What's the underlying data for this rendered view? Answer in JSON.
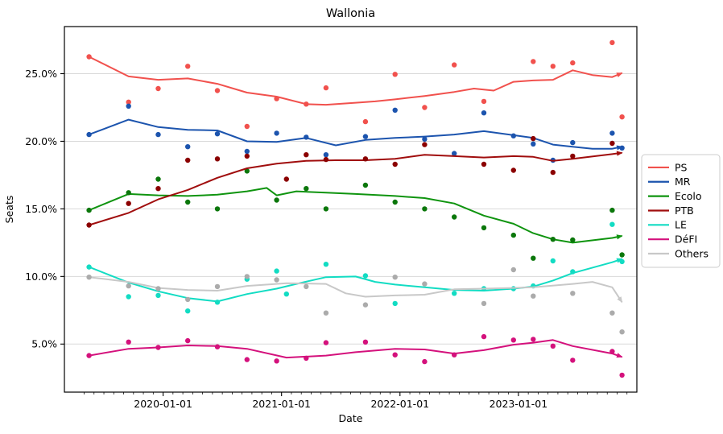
{
  "chart_data": {
    "type": "line",
    "title": "Wallonia",
    "xlabel": "Date",
    "ylabel": "Seats",
    "grid": "horizontal-only",
    "legend_position": "right-outside",
    "x_range": [
      "2019-03-01",
      "2024-01-01"
    ],
    "y_range": [
      1.4,
      28.5
    ],
    "x_ticks": [
      "2020-01-01",
      "2021-01-01",
      "2022-01-01",
      "2023-01-01"
    ],
    "x_tick_labels": [
      "2020-01-01",
      "2021-01-01",
      "2022-01-01",
      "2023-01-01"
    ],
    "y_ticks": [
      5,
      10,
      15,
      20,
      25
    ],
    "y_tick_labels": [
      "5.0%",
      "10.0%",
      "15.0%",
      "20.0%",
      "25.0%"
    ],
    "series": [
      {
        "name": "PS",
        "color": "#f1514d",
        "point_color": "#f1514d",
        "trend": [
          [
            "2019-05",
            26.25
          ],
          [
            "2019-09",
            24.8
          ],
          [
            "2019-12",
            24.55
          ],
          [
            "2020-03",
            24.65
          ],
          [
            "2020-06",
            24.25
          ],
          [
            "2020-09",
            23.6
          ],
          [
            "2020-12",
            23.3
          ],
          [
            "2021-03",
            22.75
          ],
          [
            "2021-05",
            22.7
          ],
          [
            "2021-08",
            22.85
          ],
          [
            "2021-10",
            22.95
          ],
          [
            "2021-12",
            23.1
          ],
          [
            "2022-03",
            23.35
          ],
          [
            "2022-06",
            23.65
          ],
          [
            "2022-08",
            23.9
          ],
          [
            "2022-10",
            23.75
          ],
          [
            "2022-12",
            24.4
          ],
          [
            "2023-02",
            24.5
          ],
          [
            "2023-04",
            24.55
          ],
          [
            "2023-06",
            25.25
          ],
          [
            "2023-08",
            24.9
          ],
          [
            "2023-10",
            24.75
          ],
          [
            "2023-11",
            25.05
          ]
        ],
        "points": [
          [
            "2019-05",
            26.25
          ],
          [
            "2019-09",
            22.9
          ],
          [
            "2019-12",
            23.9
          ],
          [
            "2020-03",
            25.55
          ],
          [
            "2020-06",
            23.75
          ],
          [
            "2020-09",
            21.1
          ],
          [
            "2020-12",
            23.15
          ],
          [
            "2021-03",
            22.75
          ],
          [
            "2021-05",
            23.95
          ],
          [
            "2021-09",
            21.45
          ],
          [
            "2021-12",
            24.95
          ],
          [
            "2022-03",
            22.5
          ],
          [
            "2022-06",
            25.65
          ],
          [
            "2022-09",
            22.95
          ],
          [
            "2023-02",
            25.9
          ],
          [
            "2023-04",
            25.55
          ],
          [
            "2023-06",
            25.8
          ],
          [
            "2023-10",
            27.3
          ],
          [
            "2023-11",
            21.8
          ]
        ]
      },
      {
        "name": "MR",
        "color": "#1c54ae",
        "point_color": "#1c54ae",
        "trend": [
          [
            "2019-05",
            20.5
          ],
          [
            "2019-09",
            21.6
          ],
          [
            "2019-12",
            21.05
          ],
          [
            "2020-03",
            20.85
          ],
          [
            "2020-06",
            20.8
          ],
          [
            "2020-09",
            20.0
          ],
          [
            "2020-12",
            19.95
          ],
          [
            "2021-03",
            20.25
          ],
          [
            "2021-06",
            19.7
          ],
          [
            "2021-09",
            20.1
          ],
          [
            "2021-12",
            20.25
          ],
          [
            "2022-03",
            20.35
          ],
          [
            "2022-06",
            20.5
          ],
          [
            "2022-09",
            20.75
          ],
          [
            "2022-12",
            20.45
          ],
          [
            "2023-02",
            20.25
          ],
          [
            "2023-04",
            19.75
          ],
          [
            "2023-06",
            19.6
          ],
          [
            "2023-08",
            19.45
          ],
          [
            "2023-10",
            19.45
          ],
          [
            "2023-11",
            19.6
          ]
        ],
        "points": [
          [
            "2019-05",
            20.5
          ],
          [
            "2019-09",
            22.6
          ],
          [
            "2019-12",
            20.5
          ],
          [
            "2020-03",
            19.6
          ],
          [
            "2020-06",
            20.55
          ],
          [
            "2020-09",
            19.25
          ],
          [
            "2020-12",
            20.6
          ],
          [
            "2021-03",
            20.3
          ],
          [
            "2021-05",
            19.0
          ],
          [
            "2021-09",
            20.35
          ],
          [
            "2021-12",
            22.3
          ],
          [
            "2022-03",
            20.15
          ],
          [
            "2022-06",
            19.1
          ],
          [
            "2022-09",
            22.1
          ],
          [
            "2022-12",
            20.4
          ],
          [
            "2023-02",
            19.8
          ],
          [
            "2023-04",
            18.6
          ],
          [
            "2023-06",
            19.9
          ],
          [
            "2023-10",
            20.6
          ],
          [
            "2023-11",
            19.5
          ]
        ]
      },
      {
        "name": "Ecolo",
        "color": "#0f940f",
        "point_color": "#0b770b",
        "trend": [
          [
            "2019-05",
            14.9
          ],
          [
            "2019-09",
            16.1
          ],
          [
            "2019-12",
            16.0
          ],
          [
            "2020-03",
            15.95
          ],
          [
            "2020-06",
            16.05
          ],
          [
            "2020-09",
            16.3
          ],
          [
            "2020-11",
            16.55
          ],
          [
            "2020-12",
            16.0
          ],
          [
            "2021-02",
            16.3
          ],
          [
            "2021-05",
            16.2
          ],
          [
            "2021-08",
            16.1
          ],
          [
            "2021-12",
            15.95
          ],
          [
            "2022-03",
            15.8
          ],
          [
            "2022-06",
            15.4
          ],
          [
            "2022-09",
            14.5
          ],
          [
            "2022-12",
            13.9
          ],
          [
            "2023-02",
            13.2
          ],
          [
            "2023-04",
            12.75
          ],
          [
            "2023-06",
            12.5
          ],
          [
            "2023-10",
            12.85
          ],
          [
            "2023-11",
            13.0
          ]
        ],
        "points": [
          [
            "2019-05",
            14.9
          ],
          [
            "2019-09",
            16.2
          ],
          [
            "2019-12",
            17.2
          ],
          [
            "2020-03",
            15.5
          ],
          [
            "2020-06",
            15.0
          ],
          [
            "2020-09",
            17.8
          ],
          [
            "2020-12",
            15.65
          ],
          [
            "2021-03",
            16.5
          ],
          [
            "2021-05",
            15.0
          ],
          [
            "2021-09",
            16.75
          ],
          [
            "2021-12",
            15.5
          ],
          [
            "2022-03",
            15.0
          ],
          [
            "2022-06",
            14.4
          ],
          [
            "2022-09",
            13.6
          ],
          [
            "2022-12",
            13.05
          ],
          [
            "2023-02",
            11.35
          ],
          [
            "2023-04",
            12.75
          ],
          [
            "2023-06",
            12.7
          ],
          [
            "2023-10",
            14.9
          ],
          [
            "2023-11",
            11.6
          ]
        ]
      },
      {
        "name": "PTB",
        "color": "#a00d0d",
        "point_color": "#8b0000",
        "trend": [
          [
            "2019-05",
            13.8
          ],
          [
            "2019-09",
            14.7
          ],
          [
            "2019-12",
            15.7
          ],
          [
            "2020-03",
            16.4
          ],
          [
            "2020-06",
            17.3
          ],
          [
            "2020-09",
            18.0
          ],
          [
            "2020-12",
            18.35
          ],
          [
            "2021-03",
            18.55
          ],
          [
            "2021-06",
            18.6
          ],
          [
            "2021-09",
            18.6
          ],
          [
            "2021-12",
            18.7
          ],
          [
            "2022-03",
            19.0
          ],
          [
            "2022-06",
            18.9
          ],
          [
            "2022-09",
            18.8
          ],
          [
            "2022-12",
            18.9
          ],
          [
            "2023-02",
            18.85
          ],
          [
            "2023-04",
            18.55
          ],
          [
            "2023-06",
            18.7
          ],
          [
            "2023-10",
            19.05
          ],
          [
            "2023-11",
            19.15
          ]
        ],
        "points": [
          [
            "2019-05",
            13.8
          ],
          [
            "2019-09",
            15.4
          ],
          [
            "2019-12",
            16.5
          ],
          [
            "2020-03",
            18.6
          ],
          [
            "2020-06",
            18.7
          ],
          [
            "2020-09",
            18.9
          ],
          [
            "2021-01",
            17.2
          ],
          [
            "2021-03",
            19.0
          ],
          [
            "2021-05",
            18.65
          ],
          [
            "2021-09",
            18.7
          ],
          [
            "2021-12",
            18.3
          ],
          [
            "2022-03",
            19.75
          ],
          [
            "2022-09",
            18.3
          ],
          [
            "2022-12",
            17.85
          ],
          [
            "2023-02",
            20.2
          ],
          [
            "2023-04",
            17.7
          ],
          [
            "2023-06",
            18.9
          ],
          [
            "2023-10",
            19.85
          ]
        ]
      },
      {
        "name": "LE",
        "color": "#12dcc3",
        "point_color": "#12dcc3",
        "trend": [
          [
            "2019-05",
            10.7
          ],
          [
            "2019-09",
            9.55
          ],
          [
            "2019-12",
            8.9
          ],
          [
            "2020-03",
            8.4
          ],
          [
            "2020-06",
            8.15
          ],
          [
            "2020-09",
            8.7
          ],
          [
            "2020-12",
            9.1
          ],
          [
            "2021-02",
            9.45
          ],
          [
            "2021-05",
            9.95
          ],
          [
            "2021-08",
            10.0
          ],
          [
            "2021-10",
            9.6
          ],
          [
            "2021-12",
            9.4
          ],
          [
            "2022-03",
            9.2
          ],
          [
            "2022-06",
            9.0
          ],
          [
            "2022-09",
            8.95
          ],
          [
            "2022-12",
            9.1
          ],
          [
            "2023-02",
            9.25
          ],
          [
            "2023-04",
            9.7
          ],
          [
            "2023-06",
            10.25
          ],
          [
            "2023-10",
            11.05
          ],
          [
            "2023-11",
            11.3
          ]
        ],
        "points": [
          [
            "2019-05",
            10.7
          ],
          [
            "2019-09",
            8.5
          ],
          [
            "2019-12",
            8.6
          ],
          [
            "2020-03",
            7.45
          ],
          [
            "2020-06",
            8.1
          ],
          [
            "2020-09",
            9.8
          ],
          [
            "2020-12",
            10.4
          ],
          [
            "2021-01",
            8.7
          ],
          [
            "2021-05",
            10.9
          ],
          [
            "2021-09",
            10.05
          ],
          [
            "2021-12",
            8.0
          ],
          [
            "2022-06",
            8.75
          ],
          [
            "2022-09",
            9.1
          ],
          [
            "2022-12",
            9.1
          ],
          [
            "2023-02",
            9.3
          ],
          [
            "2023-04",
            11.15
          ],
          [
            "2023-06",
            10.35
          ],
          [
            "2023-10",
            13.85
          ],
          [
            "2023-11",
            11.1
          ]
        ]
      },
      {
        "name": "DéFI",
        "color": "#d4117c",
        "point_color": "#d4117c",
        "trend": [
          [
            "2019-05",
            4.15
          ],
          [
            "2019-09",
            4.65
          ],
          [
            "2019-12",
            4.75
          ],
          [
            "2020-03",
            4.9
          ],
          [
            "2020-06",
            4.85
          ],
          [
            "2020-09",
            4.65
          ],
          [
            "2021-01",
            4.0
          ],
          [
            "2021-05",
            4.15
          ],
          [
            "2021-08",
            4.4
          ],
          [
            "2021-12",
            4.65
          ],
          [
            "2022-03",
            4.6
          ],
          [
            "2022-06",
            4.3
          ],
          [
            "2022-09",
            4.55
          ],
          [
            "2022-12",
            4.95
          ],
          [
            "2023-02",
            5.1
          ],
          [
            "2023-04",
            5.3
          ],
          [
            "2023-06",
            4.85
          ],
          [
            "2023-10",
            4.3
          ],
          [
            "2023-11",
            4.05
          ]
        ],
        "points": [
          [
            "2019-05",
            4.15
          ],
          [
            "2019-09",
            5.15
          ],
          [
            "2019-12",
            4.75
          ],
          [
            "2020-03",
            5.25
          ],
          [
            "2020-06",
            4.8
          ],
          [
            "2020-09",
            3.85
          ],
          [
            "2020-12",
            3.75
          ],
          [
            "2021-03",
            3.95
          ],
          [
            "2021-05",
            5.1
          ],
          [
            "2021-09",
            5.15
          ],
          [
            "2021-12",
            4.2
          ],
          [
            "2022-03",
            3.7
          ],
          [
            "2022-06",
            4.2
          ],
          [
            "2022-09",
            5.55
          ],
          [
            "2022-12",
            5.3
          ],
          [
            "2023-02",
            5.35
          ],
          [
            "2023-04",
            4.85
          ],
          [
            "2023-06",
            3.8
          ],
          [
            "2023-10",
            4.45
          ],
          [
            "2023-11",
            2.7
          ]
        ]
      },
      {
        "name": "Others",
        "color": "#c8c8c8",
        "point_color": "#ababab",
        "trend": [
          [
            "2019-05",
            9.95
          ],
          [
            "2019-09",
            9.6
          ],
          [
            "2019-12",
            9.15
          ],
          [
            "2020-03",
            9.0
          ],
          [
            "2020-06",
            8.95
          ],
          [
            "2020-09",
            9.3
          ],
          [
            "2021-01",
            9.5
          ],
          [
            "2021-05",
            9.45
          ],
          [
            "2021-07",
            8.75
          ],
          [
            "2021-09",
            8.5
          ],
          [
            "2021-12",
            8.6
          ],
          [
            "2022-03",
            8.65
          ],
          [
            "2022-06",
            9.05
          ],
          [
            "2022-09",
            9.1
          ],
          [
            "2022-12",
            9.15
          ],
          [
            "2023-02",
            9.2
          ],
          [
            "2023-06",
            9.45
          ],
          [
            "2023-08",
            9.6
          ],
          [
            "2023-10",
            9.2
          ],
          [
            "2023-11",
            8.1
          ]
        ],
        "points": [
          [
            "2019-05",
            9.95
          ],
          [
            "2019-09",
            9.3
          ],
          [
            "2019-12",
            9.1
          ],
          [
            "2020-03",
            8.3
          ],
          [
            "2020-06",
            9.25
          ],
          [
            "2020-09",
            10.0
          ],
          [
            "2020-12",
            9.75
          ],
          [
            "2021-03",
            9.25
          ],
          [
            "2021-05",
            7.3
          ],
          [
            "2021-09",
            7.9
          ],
          [
            "2021-12",
            9.95
          ],
          [
            "2022-03",
            9.45
          ],
          [
            "2022-09",
            8.0
          ],
          [
            "2022-12",
            10.5
          ],
          [
            "2023-02",
            8.55
          ],
          [
            "2023-06",
            8.75
          ],
          [
            "2023-10",
            7.3
          ],
          [
            "2023-11",
            5.9
          ]
        ]
      }
    ]
  }
}
